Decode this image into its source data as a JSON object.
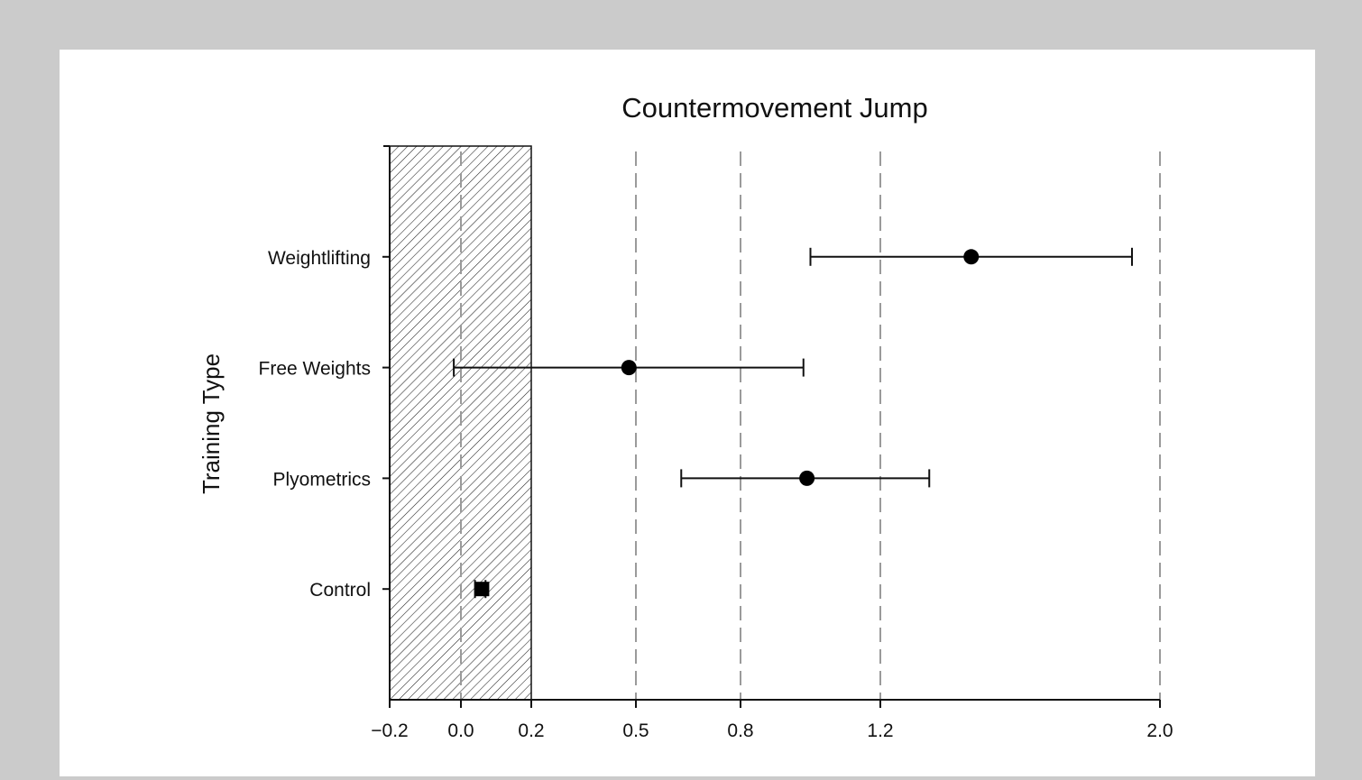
{
  "chart_data": {
    "type": "forest",
    "title": "Countermovement Jump",
    "ylabel": "Training Type",
    "xlabel": "",
    "xlim": [
      -0.2,
      2.0
    ],
    "x_ticks": [
      -0.2,
      0.0,
      0.2,
      0.5,
      0.8,
      1.2,
      2.0
    ],
    "x_tick_labels": [
      "−0.2",
      "0.0",
      "0.2",
      "0.5",
      "0.8",
      "1.2",
      "2.0"
    ],
    "reference_lines": [
      0.0,
      0.5,
      0.8,
      1.2,
      2.0
    ],
    "shaded_region": [
      -0.2,
      0.2
    ],
    "grid": "vertical dashed reference lines",
    "categories": [
      "Weightlifting",
      "Free Weights",
      "Plyometrics",
      "Control"
    ],
    "points": [
      {
        "category": "Weightlifting",
        "estimate": 1.46,
        "lower": 1.0,
        "upper": 1.92,
        "marker": "circle"
      },
      {
        "category": "Free Weights",
        "estimate": 0.48,
        "lower": -0.02,
        "upper": 0.98,
        "marker": "circle"
      },
      {
        "category": "Plyometrics",
        "estimate": 0.99,
        "lower": 0.63,
        "upper": 1.34,
        "marker": "circle"
      },
      {
        "category": "Control",
        "estimate": 0.06,
        "lower": 0.04,
        "upper": 0.07,
        "marker": "square"
      }
    ]
  }
}
